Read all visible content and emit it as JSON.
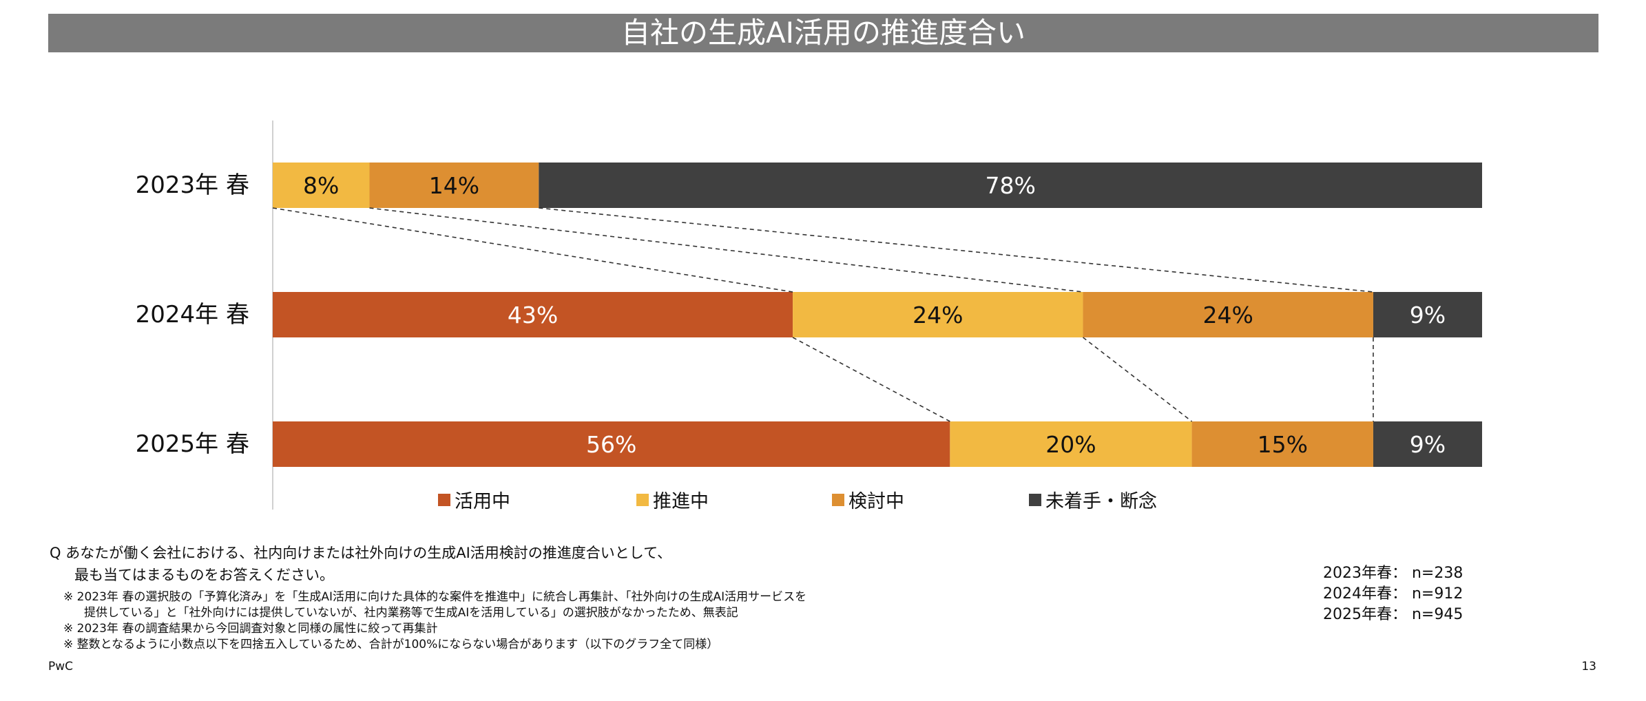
{
  "title": "自社の生成AI活用の推進度合い",
  "chart_data": {
    "type": "bar",
    "orientation": "horizontal-stacked-100",
    "categories": [
      "2023年 春",
      "2024年 春",
      "2025年 春"
    ],
    "xlim": [
      0,
      100
    ],
    "unit": "%",
    "series": [
      {
        "name": "活用中",
        "color": "#c35424",
        "values": [
          null,
          43,
          56
        ]
      },
      {
        "name": "推進中",
        "color": "#f2b942",
        "values": [
          8,
          24,
          20
        ]
      },
      {
        "name": "検討中",
        "color": "#dd8f32",
        "values": [
          14,
          24,
          15
        ]
      },
      {
        "name": "未着手・断念",
        "color": "#404040",
        "values": [
          78,
          9,
          9
        ]
      }
    ],
    "legend_position": "bottom",
    "connector_lines": "dashed",
    "grid": false
  },
  "question": {
    "line1": "Q あなたが働く会社における、社内向けまたは社外向けの生成AI活用検討の推進度合いとして、",
    "line2": "最も当てはまるものをお答えください。"
  },
  "notes": {
    "n1a": "※ 2023年 春の選択肢の「予算化済み」を「生成AI活用に向けた具体的な案件を推進中」に統合し再集計、「社外向けの生成AI活用サービスを",
    "n1b": "提供している」と「社外向けには提供していないが、社内業務等で生成AIを活用している」の選択肢がなかったため、無表記",
    "n2": "※ 2023年 春の調査結果から今回調査対象と同様の属性に絞って再集計",
    "n3": "※ 整数となるように小数点以下を四捨五入しているため、合計が100%にならない場合があります（以下のグラフ全て同様）"
  },
  "sample_sizes": [
    "2023年春： n=238",
    "2024年春： n=912",
    "2025年春： n=945"
  ],
  "footer": {
    "brand": "PwC",
    "page": "13"
  },
  "colors": {
    "title_bar": "#7b7b7b",
    "axis": "#d0d0d0",
    "connector": "#333333"
  }
}
